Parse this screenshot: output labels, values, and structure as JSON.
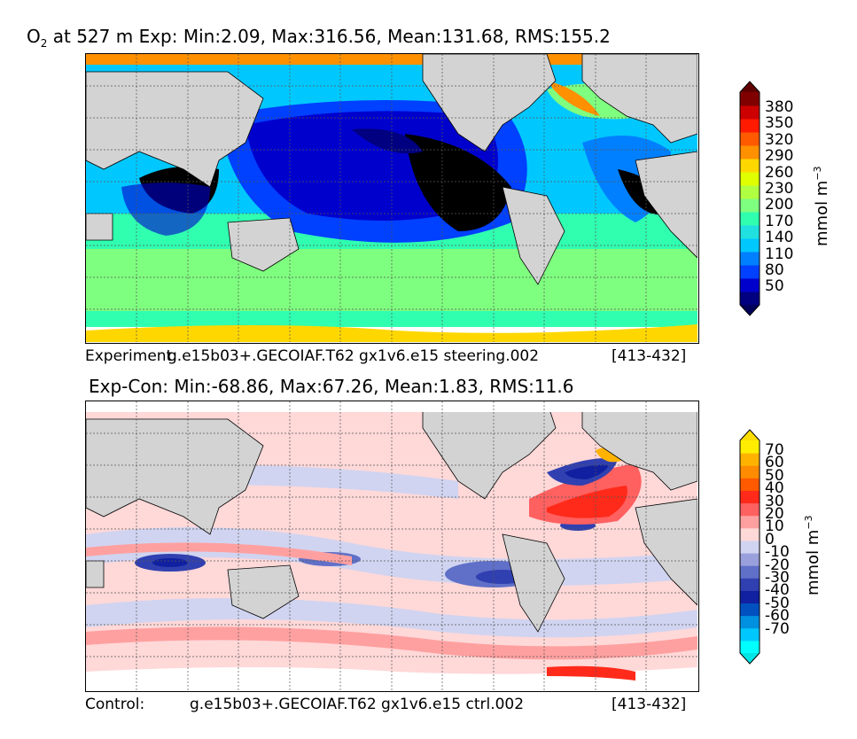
{
  "panels": [
    {
      "title_prefix": "O",
      "title_sub": "2",
      "title_rest": " at 527 m Exp: Min:2.09, Max:316.56, Mean:131.68, RMS:155.2",
      "caption_label": "Experiment:",
      "caption_run": "g.e15b03+.GECOIAF.T62 gx1v6.e15 steering.002",
      "caption_years": "[413-432]",
      "unit_main": "mmol m",
      "unit_exp": "−3",
      "colorbar": {
        "ticks": [
          "380",
          "350",
          "320",
          "290",
          "260",
          "230",
          "200",
          "170",
          "140",
          "110",
          "80",
          "50"
        ],
        "colors": [
          "#000080",
          "#0000cd",
          "#0040ff",
          "#0080ff",
          "#00c8ff",
          "#20e0e0",
          "#30ffb0",
          "#7fff7f",
          "#b0ff40",
          "#e0ff00",
          "#ffd700",
          "#ff9000",
          "#ff5a00",
          "#ff1a00",
          "#cc0000",
          "#800000"
        ],
        "under_color": "#00005a",
        "over_color": "#600000"
      }
    },
    {
      "title_rest": "Exp-Con: Min:-68.86, Max:67.26, Mean:1.83, RMS:11.6",
      "caption_label": "Control:",
      "caption_run": "g.e15b03+.GECOIAF.T62 gx1v6.e15 ctrl.002",
      "caption_years": "[413-432]",
      "unit_main": "mmol m",
      "unit_exp": "−3",
      "colorbar": {
        "ticks": [
          "70",
          "60",
          "50",
          "40",
          "30",
          "20",
          "10",
          "0",
          "-10",
          "-20",
          "-30",
          "-40",
          "-50",
          "-60",
          "-70"
        ],
        "colors": [
          "#00ffff",
          "#00c8ff",
          "#0090e0",
          "#0050c0",
          "#1020a0",
          "#3040b0",
          "#6070c8",
          "#9aa0dc",
          "#d0d4f0",
          "#ffd8d8",
          "#ffa0a0",
          "#ff6060",
          "#ff2a1a",
          "#ff5a00",
          "#ff8c00",
          "#ffb300",
          "#ffee00"
        ],
        "under_color": "#00e5e5",
        "over_color": "#ffdd00"
      }
    }
  ],
  "colors": {
    "land": "#d3d3d3",
    "ice": "#ffffff",
    "grid": "#555555"
  }
}
